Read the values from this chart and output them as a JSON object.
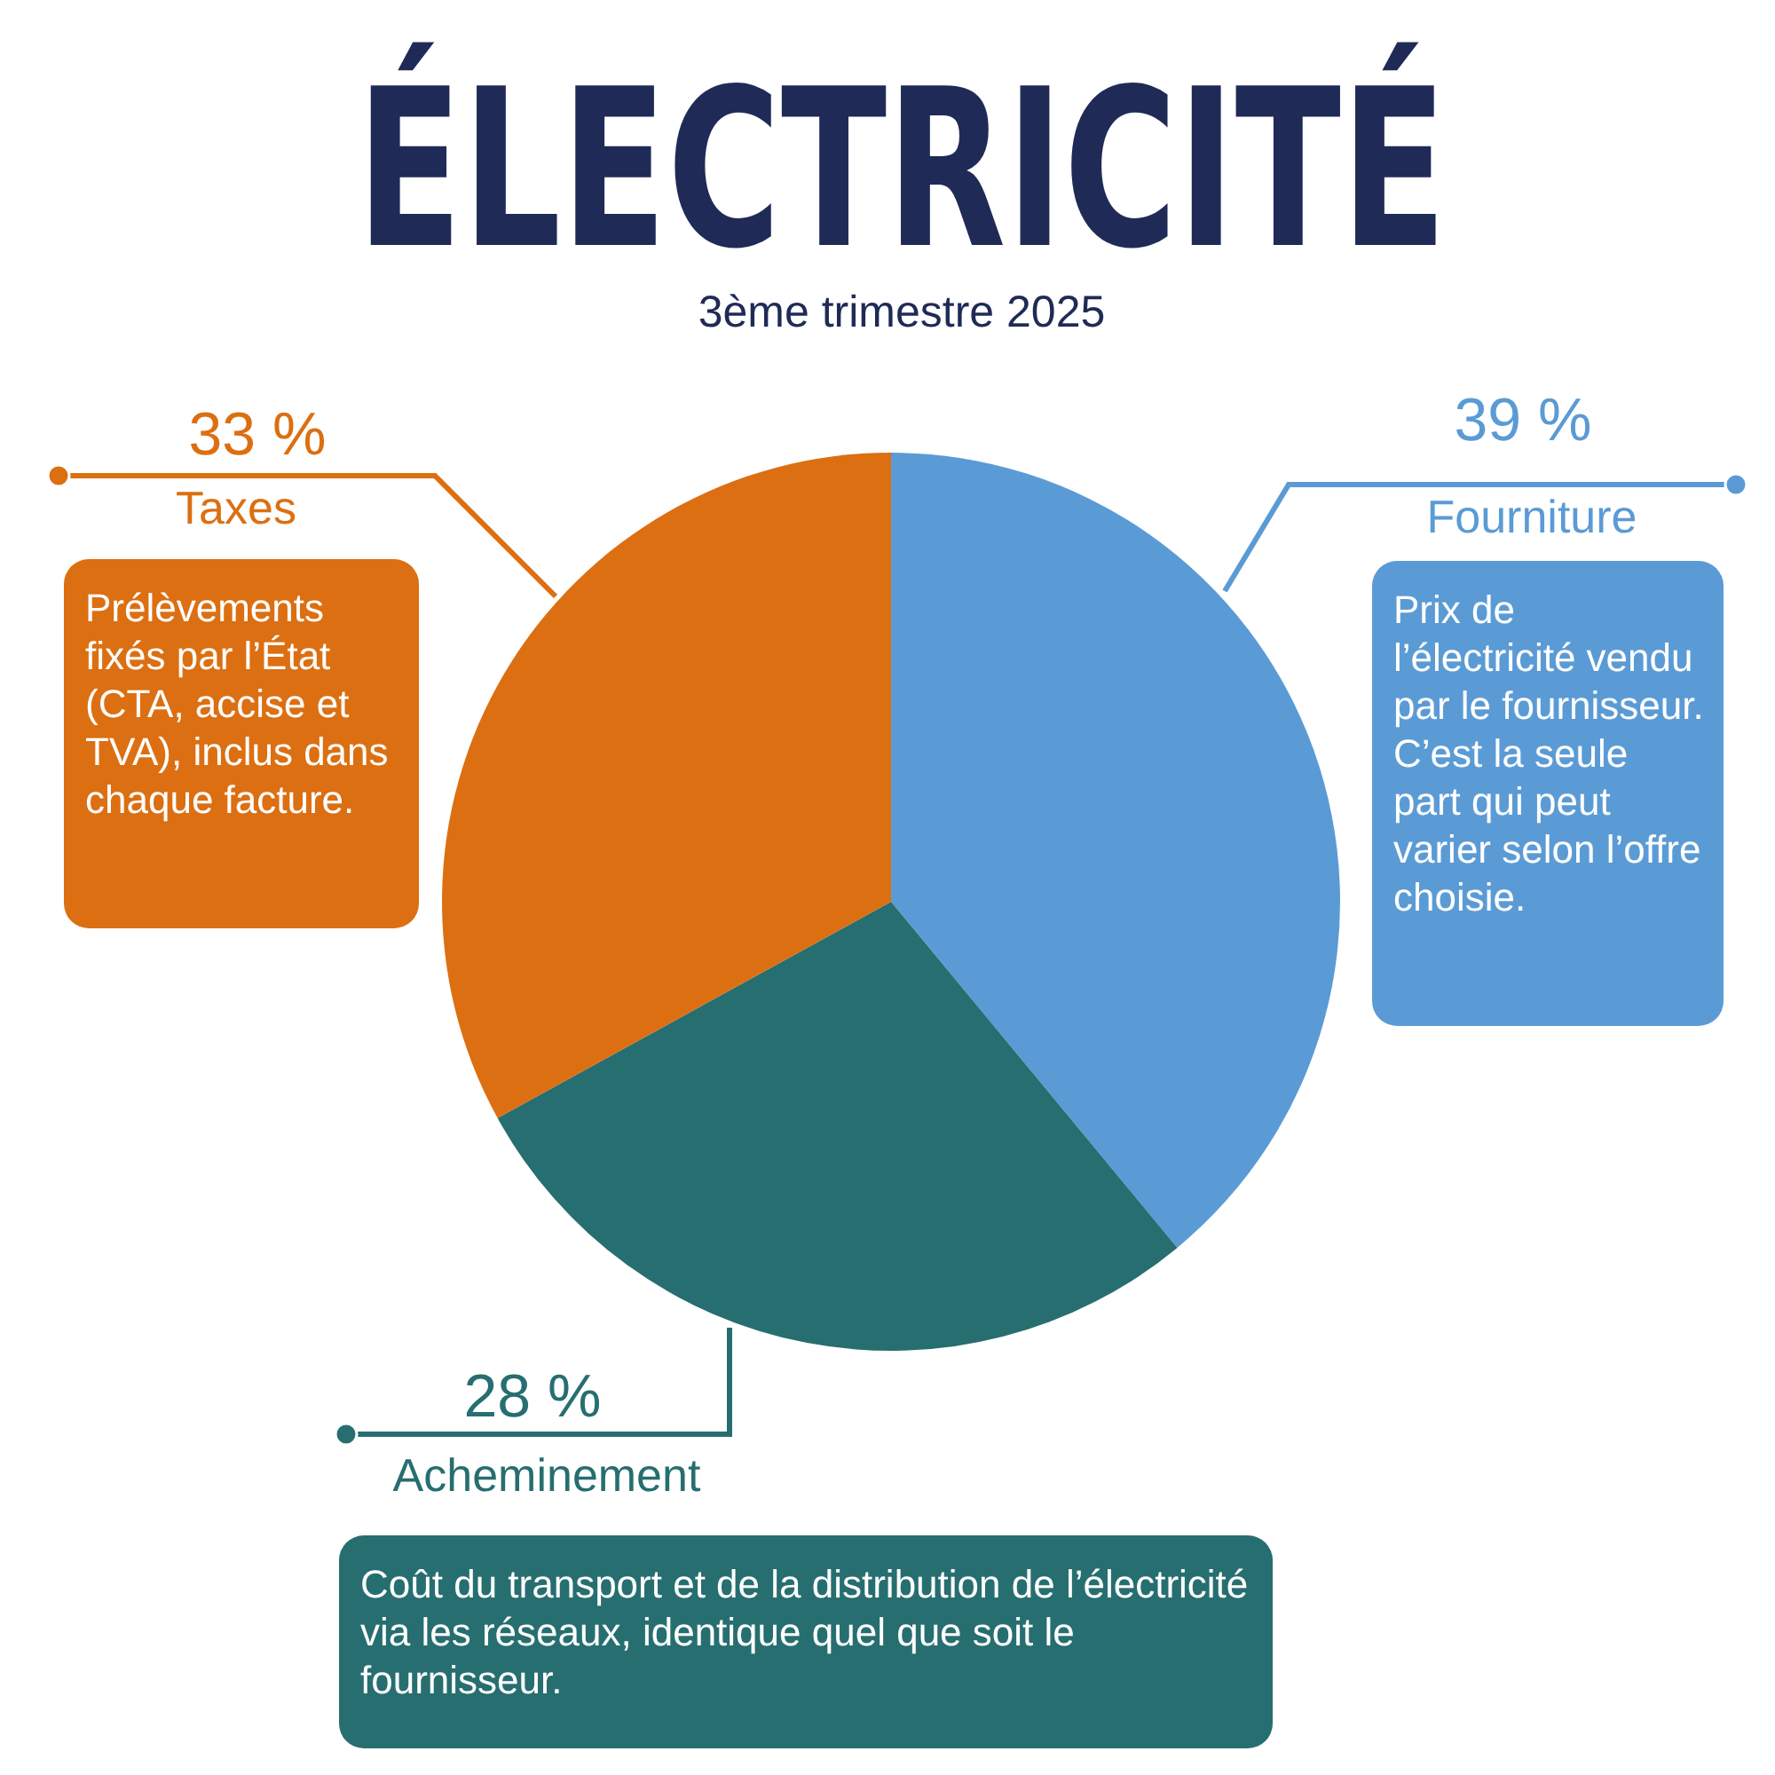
{
  "chart_data": {
    "type": "pie",
    "title": "ÉLECTRICITÉ",
    "subtitle": "3ème trimestre 2025",
    "categories": [
      "Fourniture",
      "Acheminement",
      "Taxes"
    ],
    "values": [
      39,
      28,
      33
    ],
    "colors": [
      "#5b9bd5",
      "#276e70",
      "#dc6f12"
    ],
    "value_labels": [
      "39 %",
      "28 %",
      "33 %"
    ],
    "annotations": [
      "Prix de l’électricité vendu par le fournisseur. C’est la seule part qui peut varier selon l’offre choisie.",
      "Coût du transport et de la distribution de l’électricité via les réseaux, identique quel que soit le fournisseur.",
      "Prélèvements fixés par l’État (CTA, accise et TVA), inclus dans chaque facture."
    ]
  }
}
